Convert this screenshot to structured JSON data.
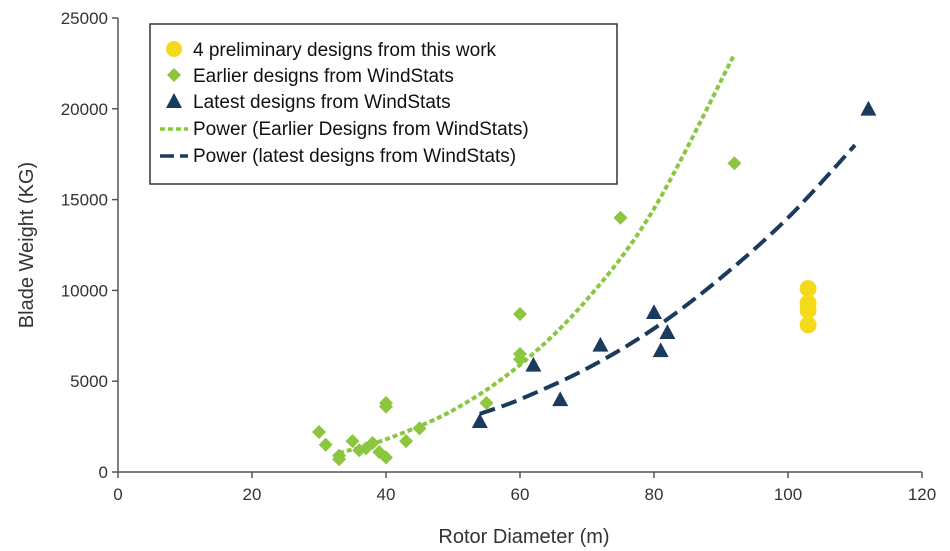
{
  "colors": {
    "preliminary": "#f5d91b",
    "earlier": "#8cc63f",
    "latest": "#1a3a5e",
    "axis": "#555555",
    "legend_border": "#333333"
  },
  "chart_data": {
    "type": "scatter",
    "xlabel": "Rotor Diameter (m)",
    "ylabel": "Blade Weight (KG)",
    "xlim": [
      0,
      120
    ],
    "ylim": [
      0,
      25000
    ],
    "xticks": [
      0,
      20,
      40,
      60,
      80,
      100,
      120
    ],
    "yticks": [
      0,
      5000,
      10000,
      15000,
      20000,
      25000
    ],
    "grid": false,
    "legend_position": "top-left",
    "legend": [
      "4 preliminary designs from this work",
      "Earlier designs from WindStats",
      "Latest designs from WindStats",
      "Power (Earlier Designs from WindStats)",
      "Power (latest designs from WindStats)"
    ],
    "series": [
      {
        "name": "4 preliminary designs from this work",
        "marker": "circle",
        "color": "#f5d91b",
        "points": [
          [
            103,
            10100
          ],
          [
            103,
            9300
          ],
          [
            103,
            8900
          ],
          [
            103,
            8100
          ]
        ]
      },
      {
        "name": "Earlier designs from WindStats",
        "marker": "diamond",
        "color": "#8cc63f",
        "points": [
          [
            30,
            2200
          ],
          [
            31,
            1500
          ],
          [
            33,
            900
          ],
          [
            33,
            700
          ],
          [
            35,
            1700
          ],
          [
            36,
            1200
          ],
          [
            37,
            1300
          ],
          [
            38,
            1600
          ],
          [
            39,
            1100
          ],
          [
            40,
            800
          ],
          [
            40,
            3800
          ],
          [
            40,
            3600
          ],
          [
            43,
            1700
          ],
          [
            45,
            2400
          ],
          [
            55,
            3800
          ],
          [
            60,
            8700
          ],
          [
            60,
            6500
          ],
          [
            60,
            6200
          ],
          [
            75,
            14000
          ],
          [
            92,
            17000
          ]
        ]
      },
      {
        "name": "Latest designs from WindStats",
        "marker": "triangle",
        "color": "#1a3a5e",
        "points": [
          [
            54,
            2800
          ],
          [
            62,
            5900
          ],
          [
            66,
            4000
          ],
          [
            72,
            7000
          ],
          [
            80,
            8800
          ],
          [
            81,
            6700
          ],
          [
            82,
            7700
          ],
          [
            112,
            20000
          ]
        ]
      }
    ],
    "trendlines": [
      {
        "name": "Power (Earlier Designs from WindStats)",
        "style": "short-dash",
        "color": "#8cc63f",
        "x_range": [
          33,
          92
        ],
        "points": [
          [
            33,
            1050
          ],
          [
            40,
            1800
          ],
          [
            50,
            3400
          ],
          [
            60,
            5900
          ],
          [
            70,
            9500
          ],
          [
            80,
            14500
          ],
          [
            92,
            23000
          ]
        ]
      },
      {
        "name": "Power (latest designs from WindStats)",
        "style": "long-dash",
        "color": "#1a3a5e",
        "x_range": [
          54,
          110
        ],
        "points": [
          [
            54,
            3200
          ],
          [
            60,
            4000
          ],
          [
            70,
            5700
          ],
          [
            80,
            7900
          ],
          [
            90,
            10700
          ],
          [
            100,
            14000
          ],
          [
            110,
            18000
          ]
        ]
      }
    ]
  }
}
